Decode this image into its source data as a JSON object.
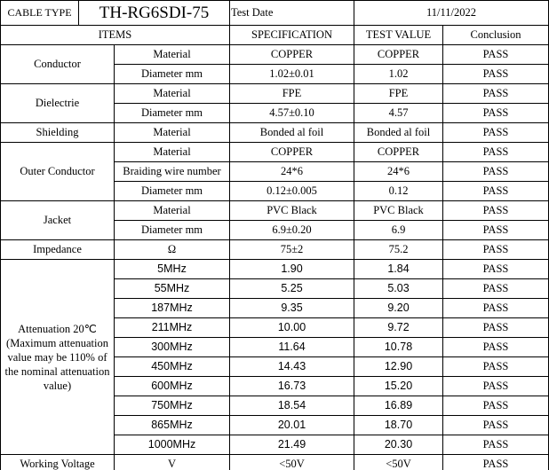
{
  "header": {
    "cable_type_label": "CABLE TYPE",
    "cable_type": "TH-RG6SDI-75",
    "test_date_label": "Test Date",
    "test_date": "11/11/2022"
  },
  "columns": [
    "ITEMS",
    "SPECIFICATION",
    "TEST VALUE",
    "Conclusion"
  ],
  "groups": [
    {
      "item": "Conductor",
      "rows": [
        [
          "Material",
          "COPPER",
          "COPPER",
          "PASS"
        ],
        [
          "Diameter  mm",
          "1.02±0.01",
          "1.02",
          "PASS"
        ]
      ]
    },
    {
      "item": "Dielectrie",
      "rows": [
        [
          "Material",
          "FPE",
          "FPE",
          "PASS"
        ],
        [
          "Diameter mm",
          "4.57±0.10",
          "4.57",
          "PASS"
        ]
      ]
    },
    {
      "item": "Shielding",
      "rows": [
        [
          "Material",
          "Bonded al foil",
          "Bonded al foil",
          "PASS"
        ]
      ]
    },
    {
      "item": "Outer Conductor",
      "rows": [
        [
          "Material",
          "COPPER",
          "COPPER",
          "PASS"
        ],
        [
          "Braiding wire number",
          "24*6",
          "24*6",
          "PASS"
        ],
        [
          "Diameter  mm",
          "0.12±0.005",
          "0.12",
          "PASS"
        ]
      ]
    },
    {
      "item": "Jacket",
      "rows": [
        [
          "Material",
          "PVC Black",
          "PVC Black",
          "PASS"
        ],
        [
          "Diameter mm",
          "6.9±0.20",
          "6.9",
          "PASS"
        ]
      ]
    },
    {
      "item": "Impedance",
      "rows": [
        [
          "Ω",
          "75±2",
          "75.2",
          "PASS"
        ]
      ]
    },
    {
      "item": "Attenuation 20℃ (Maximum attenuation value may be 110% of the nominal attenuation value)",
      "rows": [
        [
          "5MHz",
          "1.90",
          "1.84",
          "PASS"
        ],
        [
          "55MHz",
          "5.25",
          "5.03",
          "PASS"
        ],
        [
          "187MHz",
          "9.35",
          "9.20",
          "PASS"
        ],
        [
          "211MHz",
          "10.00",
          "9.72",
          "PASS"
        ],
        [
          "300MHz",
          "11.64",
          "10.78",
          "PASS"
        ],
        [
          "450MHz",
          "14.43",
          "12.90",
          "PASS"
        ],
        [
          "600MHz",
          "16.73",
          "15.20",
          "PASS"
        ],
        [
          "750MHz",
          "18.54",
          "16.89",
          "PASS"
        ],
        [
          "865MHz",
          "20.01",
          "18.70",
          "PASS"
        ],
        [
          "1000MHz",
          "21.49",
          "20.30",
          "PASS"
        ]
      ]
    },
    {
      "item": "Working Voltage",
      "rows": [
        [
          "V",
          "<50V",
          "<50V",
          "PASS"
        ]
      ]
    }
  ]
}
